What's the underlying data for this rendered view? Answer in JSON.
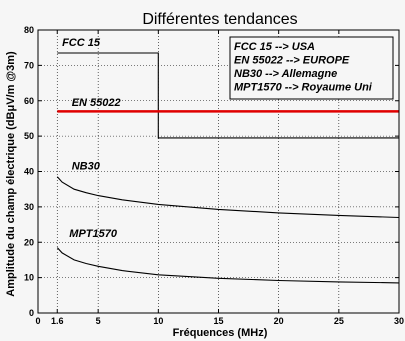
{
  "chart_data": {
    "type": "line",
    "title": "Différentes tendances",
    "xlabel": "Fréquences (MHz)",
    "ylabel": "Amplitude du champ électrique (dBμV/m @3m)",
    "xlim": [
      0,
      30
    ],
    "ylim": [
      0,
      80
    ],
    "x_ticks": [
      0,
      1.6,
      5,
      10,
      15,
      20,
      25,
      30
    ],
    "x_tick_labels": [
      "0",
      "1.6",
      "5",
      "10",
      "15",
      "20",
      "25",
      "30"
    ],
    "y_ticks": [
      0,
      10,
      20,
      30,
      40,
      50,
      60,
      70,
      80
    ],
    "y_tick_labels": [
      "0",
      "10",
      "20",
      "30",
      "40",
      "50",
      "60",
      "70",
      "80"
    ],
    "grid": true,
    "series": [
      {
        "name": "FCC 15",
        "color": "#000000",
        "x": [
          1.6,
          10,
          10,
          30
        ],
        "y": [
          73.5,
          73.5,
          49.5,
          49.5
        ]
      },
      {
        "name": "EN 55022",
        "color": "#e00000",
        "x": [
          1.6,
          30
        ],
        "y": [
          57,
          57
        ]
      },
      {
        "name": "NB30",
        "color": "#000000",
        "x": [
          1.6,
          2,
          3,
          4,
          5,
          7,
          10,
          15,
          20,
          25,
          30
        ],
        "y": [
          38.5,
          37,
          35,
          34,
          33.2,
          32,
          30.7,
          29.3,
          28.3,
          27.6,
          27
        ]
      },
      {
        "name": "MPT1570",
        "color": "#000000",
        "x": [
          1.6,
          2,
          3,
          4,
          5,
          7,
          10,
          15,
          20,
          25,
          30
        ],
        "y": [
          18.5,
          17,
          15,
          14,
          13.2,
          12,
          10.8,
          9.8,
          9.2,
          8.8,
          8.5
        ]
      }
    ],
    "annotations": [
      {
        "text": "FCC 15",
        "x": 2.0,
        "y": 75.5
      },
      {
        "text": "EN 55022",
        "x": 2.8,
        "y": 58.5
      },
      {
        "text": "NB30",
        "x": 2.8,
        "y": 40.5
      },
      {
        "text": "MPT1570",
        "x": 2.6,
        "y": 21.5
      }
    ],
    "legend": {
      "placement": "top-right",
      "entries": [
        "FCC 15 --> USA",
        "EN 55022 --> EUROPE",
        "NB30 --> Allemagne",
        "MPT1570 --> Royaume Uni"
      ]
    }
  }
}
